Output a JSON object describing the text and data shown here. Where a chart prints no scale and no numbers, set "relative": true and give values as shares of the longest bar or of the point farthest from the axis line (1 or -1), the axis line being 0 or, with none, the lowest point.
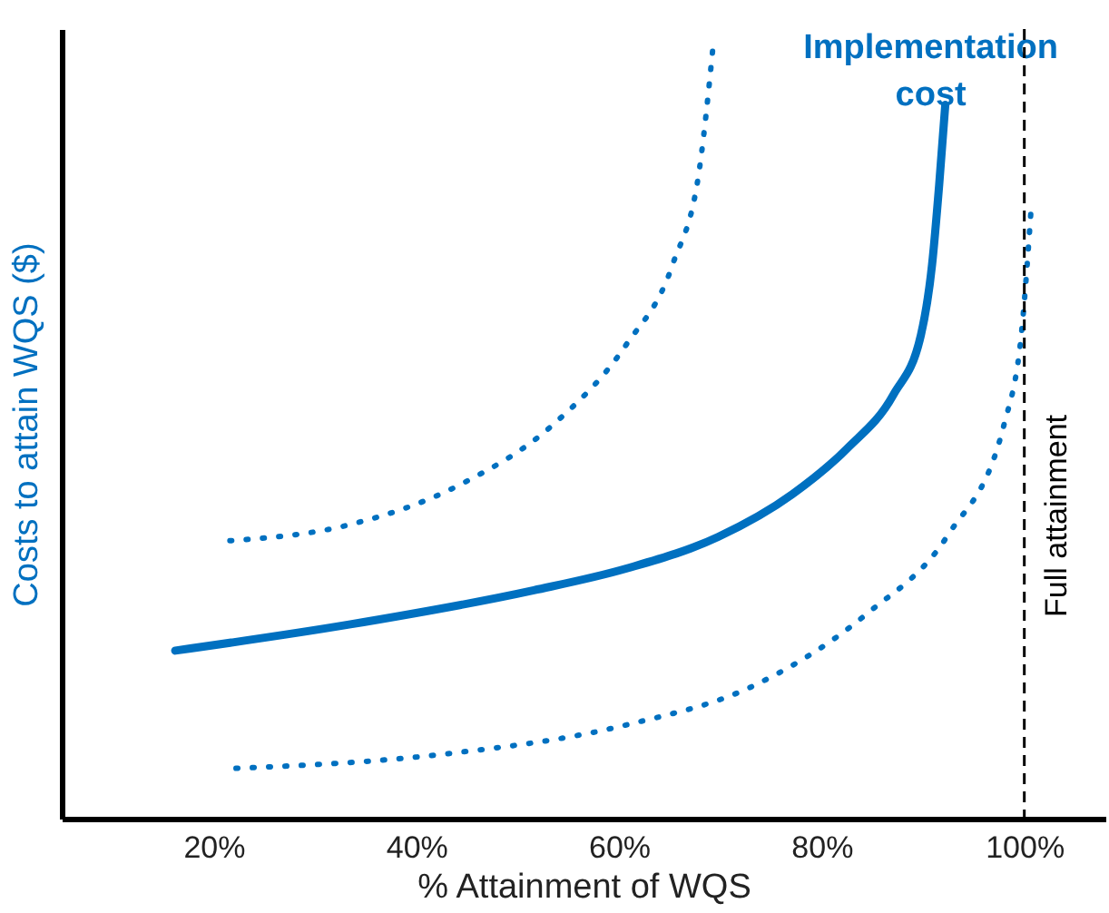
{
  "chart_data": {
    "type": "line",
    "relative": true,
    "xlabel": "% Attainment of WQS",
    "ylabel": "Costs to attain WQS ($)",
    "xlim": [
      5,
      108
    ],
    "xticks": [
      {
        "value": 20,
        "label": "20%"
      },
      {
        "value": 40,
        "label": "40%"
      },
      {
        "value": 60,
        "label": "60%"
      },
      {
        "value": 80,
        "label": "80%"
      },
      {
        "value": 100,
        "label": "100%"
      }
    ],
    "grid": false,
    "marker": "none",
    "tick_labels": "x",
    "series": [
      {
        "name": "Implementation cost",
        "color": "#0070c0",
        "line_style": "solid",
        "x": [
          16.2,
          33.5,
          51.6,
          60.7,
          69.8,
          77.1,
          82.5,
          87.1,
          89.8,
          90.9,
          91.6,
          92.2
        ],
        "values": [
          0.217,
          0.251,
          0.295,
          0.323,
          0.364,
          0.419,
          0.478,
          0.548,
          0.625,
          0.716,
          0.819,
          0.922
        ]
      },
      {
        "color": "#0070c0",
        "line_style": "dotted",
        "x": [
          21.6,
          33.5,
          44.4,
          53.5,
          60.7,
          65.3,
          68.0,
          69.3
        ],
        "values": [
          0.359,
          0.38,
          0.432,
          0.509,
          0.612,
          0.716,
          0.845,
          1.0
        ]
      },
      {
        "color": "#0070c0",
        "line_style": "dotted",
        "x": [
          22.2,
          42.5,
          60.7,
          73.5,
          84.4,
          92.5,
          98.0,
          99.8,
          100.7
        ],
        "values": [
          0.065,
          0.083,
          0.121,
          0.173,
          0.264,
          0.367,
          0.509,
          0.638,
          0.793
        ]
      }
    ],
    "ref_lines": [
      {
        "axis": "x",
        "value": 100,
        "label": "Full attainment",
        "color": "#000000",
        "line_style": "dashed"
      }
    ]
  }
}
